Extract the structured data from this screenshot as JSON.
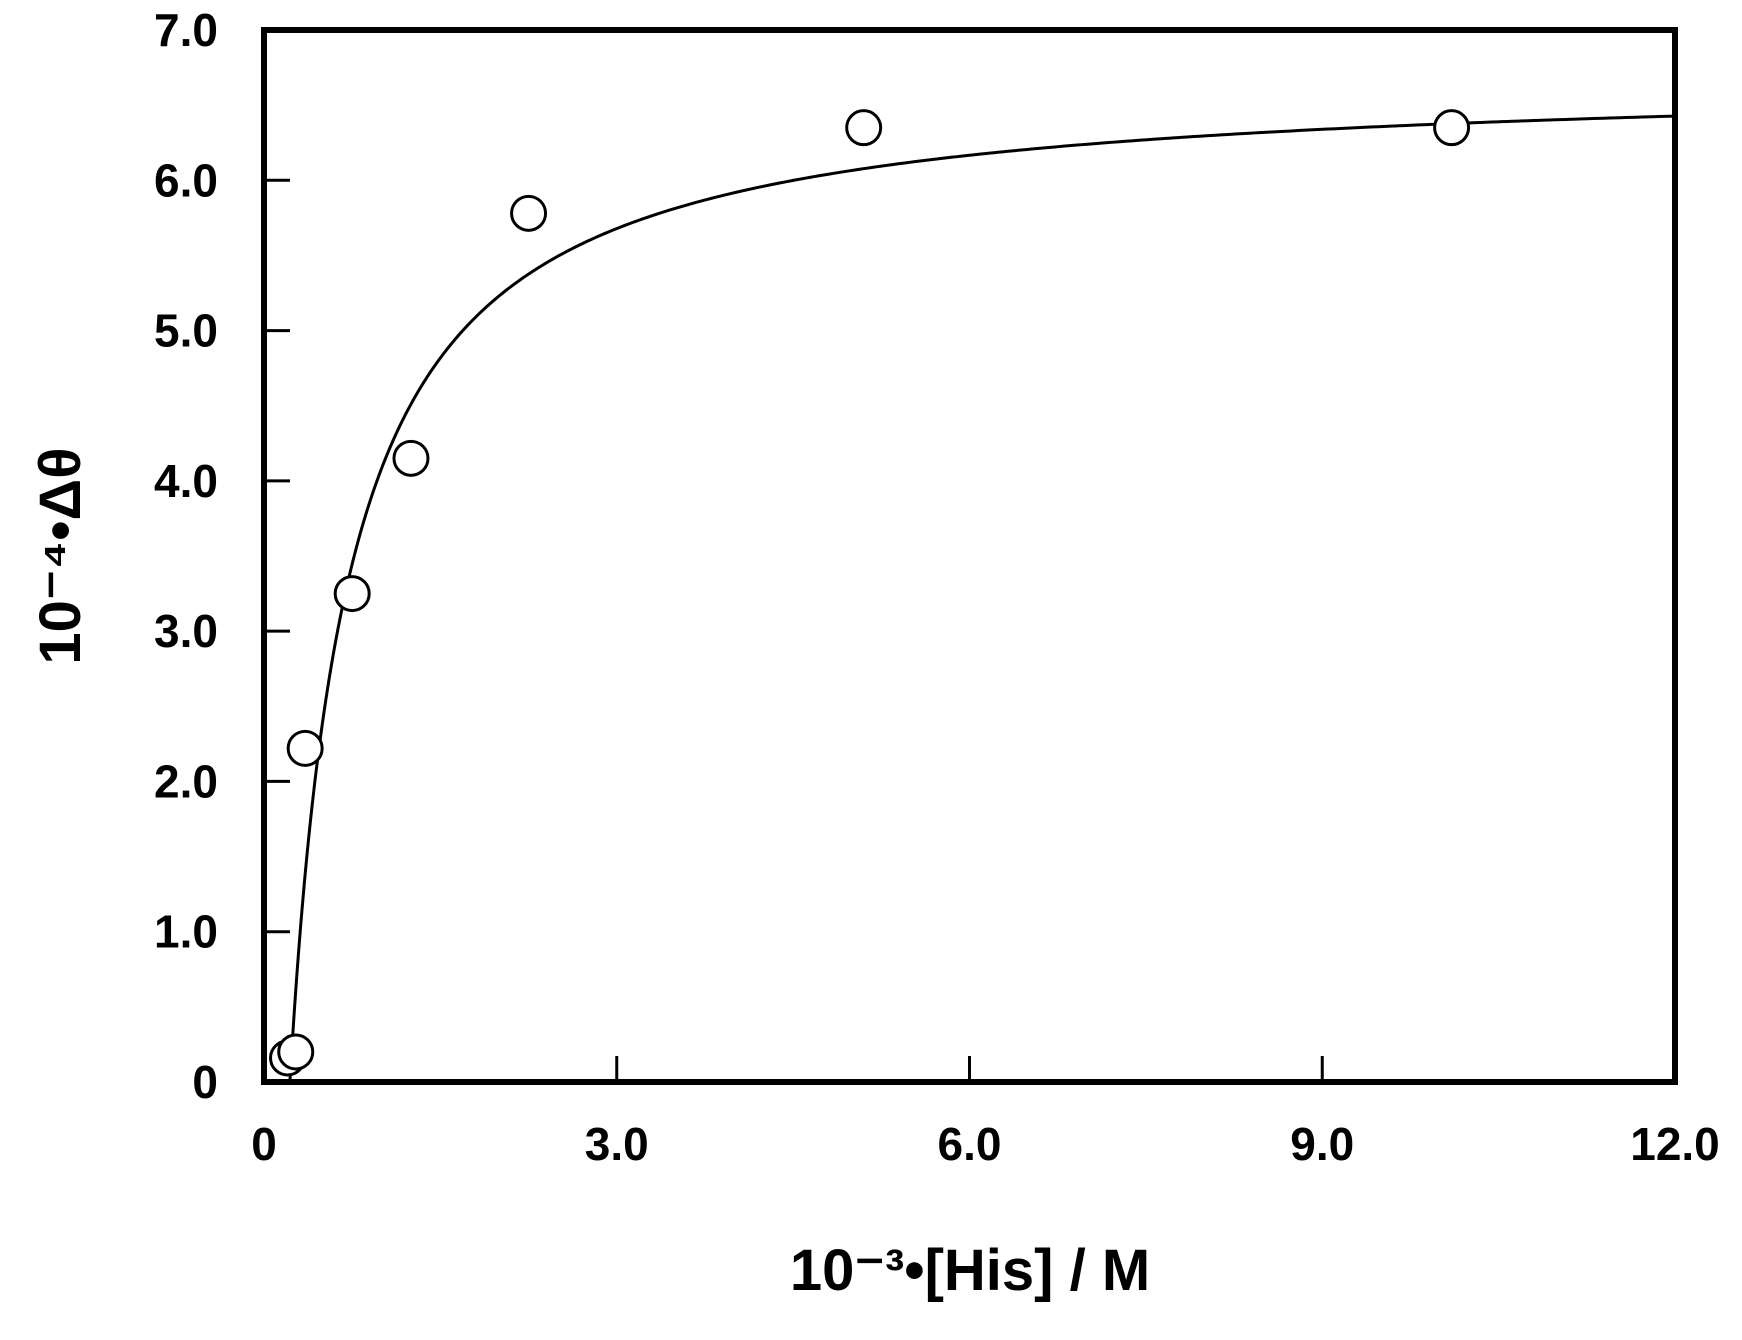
{
  "chart_data": {
    "type": "scatter",
    "title": "",
    "xlabel": "10⁻³•[His] / M",
    "ylabel": "10⁻⁴•Δθ",
    "xlim": [
      0,
      12.0
    ],
    "ylim": [
      0,
      7.0
    ],
    "x_ticks": [
      {
        "value": 0,
        "label": "0"
      },
      {
        "value": 3.0,
        "label": "3.0"
      },
      {
        "value": 6.0,
        "label": "6.0"
      },
      {
        "value": 9.0,
        "label": "9.0"
      },
      {
        "value": 12.0,
        "label": "12.0"
      }
    ],
    "y_ticks": [
      {
        "value": 0,
        "label": "0"
      },
      {
        "value": 1.0,
        "label": "1.0"
      },
      {
        "value": 2.0,
        "label": "2.0"
      },
      {
        "value": 3.0,
        "label": "3.0"
      },
      {
        "value": 4.0,
        "label": "4.0"
      },
      {
        "value": 5.0,
        "label": "5.0"
      },
      {
        "value": 6.0,
        "label": "6.0"
      },
      {
        "value": 7.0,
        "label": "7.0"
      }
    ],
    "grid": false,
    "legend": "none",
    "series": [
      {
        "kind": "points",
        "marker": "open-circle",
        "x": [
          0.2,
          0.27,
          0.35,
          0.75,
          1.25,
          2.25,
          5.1,
          10.1
        ],
        "y": [
          0.16,
          0.2,
          2.22,
          3.25,
          4.15,
          5.78,
          6.35,
          6.35
        ]
      },
      {
        "kind": "fit-curve",
        "x0": 0.22,
        "ymax": 6.7,
        "kd": 0.5
      }
    ],
    "colors": {
      "axis": "#000000",
      "points": "#000000",
      "curve": "#000000",
      "background": "#ffffff"
    }
  }
}
